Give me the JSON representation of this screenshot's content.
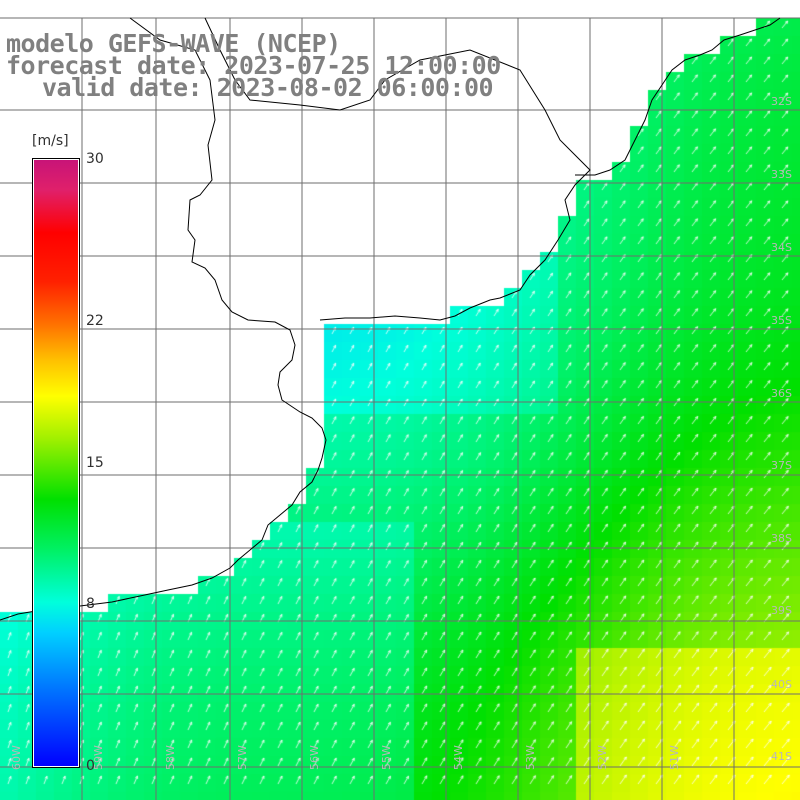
{
  "title": {
    "line1": "modelo GEFS-WAVE (NCEP)",
    "line2": "forecast date: 2023-07-25 12:00:00",
    "line3": "valid date: 2023-08-02 06:00:00"
  },
  "colorbar": {
    "unit": "[m/s]",
    "min": 0,
    "max": 30,
    "ticks": [
      {
        "label": "30",
        "value": 30
      },
      {
        "label": "22",
        "value": 22
      },
      {
        "label": "15",
        "value": 15
      },
      {
        "label": "8",
        "value": 8
      },
      {
        "label": "0",
        "value": 0
      }
    ]
  },
  "lat_labels": [
    {
      "label": "32S",
      "lat": -32
    },
    {
      "label": "33S",
      "lat": -33
    },
    {
      "label": "34S",
      "lat": -34
    },
    {
      "label": "35S",
      "lat": -35
    },
    {
      "label": "36S",
      "lat": -36
    },
    {
      "label": "37S",
      "lat": -37
    },
    {
      "label": "38S",
      "lat": -38
    },
    {
      "label": "39S",
      "lat": -39
    },
    {
      "label": "40S",
      "lat": -40
    },
    {
      "label": "41S",
      "lat": -41
    }
  ],
  "lon_labels": [
    {
      "label": "60W",
      "lon": -60
    },
    {
      "label": "59W",
      "lon": -59
    },
    {
      "label": "58W",
      "lon": -58
    },
    {
      "label": "57W",
      "lon": -57
    },
    {
      "label": "56W",
      "lon": -56
    },
    {
      "label": "55W",
      "lon": -55
    },
    {
      "label": "54W",
      "lon": -54
    },
    {
      "label": "53W",
      "lon": -53
    },
    {
      "label": "52W",
      "lon": -52
    },
    {
      "label": "51W",
      "lon": -51
    }
  ],
  "colors": {
    "grid": "#6e6e6e",
    "coast": "#000000",
    "arrows": "#ffffff",
    "label": "#808080",
    "land": "#ffffff"
  }
}
